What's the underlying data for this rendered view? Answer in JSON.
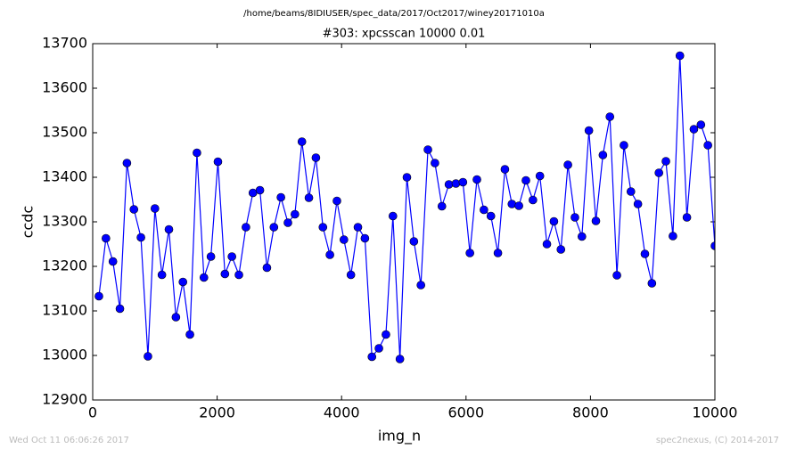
{
  "chart_data": {
    "type": "line",
    "suptitle": "/home/beams/8IDIUSER/spec_data/2017/Oct2017/winey20171010a",
    "title": "#303: xpcsscan 10000 0.01",
    "x_label": "img_n",
    "y_label": "ccdc",
    "footer_left": "Wed Oct 11 06:06:26 2017",
    "footer_right": "spec2nexus, (C) 2014-2017",
    "x": [
      100,
      212.5,
      325,
      437.5,
      550,
      662.5,
      775,
      887.5,
      1000,
      1112.5,
      1225,
      1337.5,
      1450,
      1562.5,
      1675,
      1787.5,
      1900,
      2012.5,
      2125,
      2237.5,
      2350,
      2462.5,
      2575,
      2687.5,
      2800,
      2912.5,
      3025,
      3137.5,
      3250,
      3362.5,
      3475,
      3587.5,
      3700,
      3812.5,
      3925,
      4037.5,
      4150,
      4262.5,
      4375,
      4487.5,
      4600,
      4712.5,
      4825,
      4937.5,
      5050,
      5162.5,
      5275,
      5387.5,
      5500,
      5612.5,
      5725,
      5837.5,
      5950,
      6062.5,
      6175,
      6287.5,
      6400,
      6512.5,
      6625,
      6737.5,
      6850,
      6962.5,
      7075,
      7187.5,
      7300,
      7412.5,
      7525,
      7637.5,
      7750,
      7862.5,
      7975,
      8087.5,
      8200,
      8312.5,
      8425,
      8537.5,
      8650,
      8762.5,
      8875,
      8987.5,
      9100,
      9212.5,
      9325,
      9437.5,
      9550,
      9662.5,
      9775,
      9887.5,
      10000
    ],
    "series": [
      {
        "name": "ccdc",
        "color": "#0000ff",
        "values": [
          13133,
          13263,
          13211,
          13105,
          13432,
          13328,
          13265,
          12998,
          13330,
          13181,
          13283,
          13086,
          13165,
          13047,
          13455,
          13175,
          13222,
          13435,
          13183,
          13222,
          13181,
          13288,
          13365,
          13371,
          13197,
          13288,
          13355,
          13298,
          13317,
          13480,
          13354,
          13444,
          13288,
          13226,
          13347,
          13260,
          13181,
          13288,
          13263,
          12997,
          13016,
          13047,
          13313,
          12992,
          13400,
          13256,
          13158,
          13462,
          13432,
          13335,
          13384,
          13386,
          13389,
          13230,
          13395,
          13327,
          13313,
          13230,
          13418,
          13340,
          13336,
          13393,
          13349,
          13403,
          13250,
          13301,
          13238,
          13428,
          13310,
          13267,
          13505,
          13302,
          13450,
          13536,
          13180,
          13472,
          13368,
          13340,
          13228,
          13162,
          13410,
          13436,
          13268,
          13673,
          13310,
          13508,
          13518,
          13472,
          13246
        ]
      }
    ],
    "xlim": [
      0,
      10000
    ],
    "xticks": [
      0,
      2000,
      4000,
      6000,
      8000,
      10000
    ],
    "ylim": [
      12900,
      13700
    ],
    "yticks": [
      12900,
      13000,
      13100,
      13200,
      13300,
      13400,
      13500,
      13600,
      13700
    ]
  }
}
